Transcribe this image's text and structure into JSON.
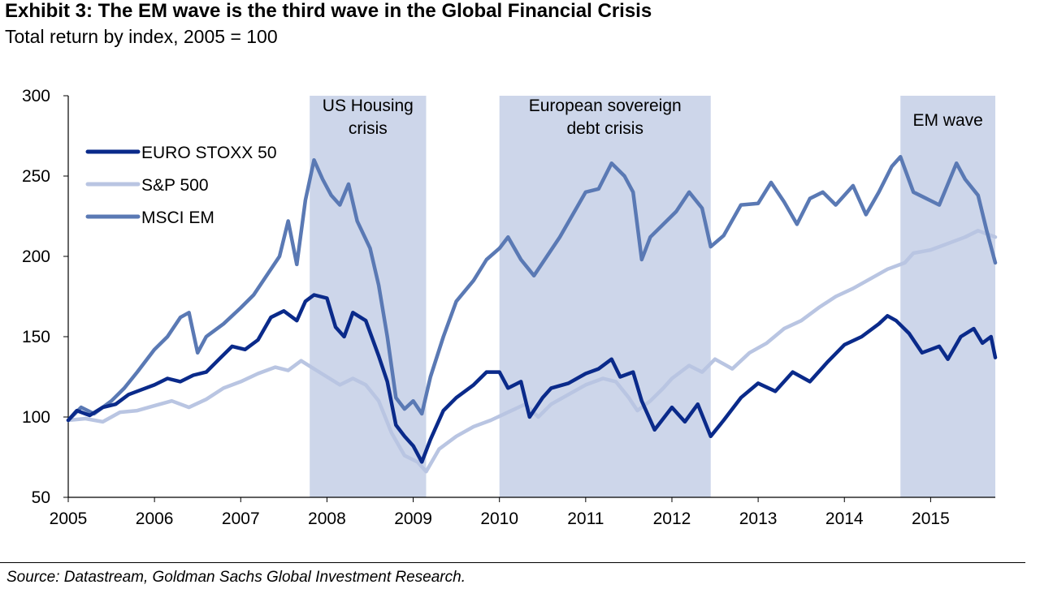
{
  "title": "Exhibit 3: The EM wave is the third wave in the Global Financial Crisis",
  "subtitle": "Total return by index, 2005 = 100",
  "source": "Source: Datastream, Goldman Sachs Global Investment Research.",
  "chart_data": {
    "type": "line",
    "x_unit": "year",
    "xlim": [
      2005,
      2015.75
    ],
    "ylim": [
      50,
      300
    ],
    "y_ticks": [
      50,
      100,
      150,
      200,
      250,
      300
    ],
    "x_ticks": [
      2005,
      2006,
      2007,
      2008,
      2009,
      2010,
      2011,
      2012,
      2013,
      2014,
      2015
    ],
    "x_tick_labels": [
      "2005",
      "2006",
      "2007",
      "2008",
      "2009",
      "2010",
      "2011",
      "2012",
      "2013",
      "2014",
      "2015"
    ],
    "grid": false,
    "legend_position": "top-left",
    "shaded_periods": [
      {
        "label_lines": [
          "US Housing",
          "crisis"
        ],
        "start": 2007.8,
        "end": 2009.15
      },
      {
        "label_lines": [
          "European sovereign",
          "debt crisis"
        ],
        "start": 2010.0,
        "end": 2012.45
      },
      {
        "label_lines": [
          "EM wave"
        ],
        "start": 2014.65,
        "end": 2015.75
      }
    ],
    "series": [
      {
        "name": "EURO STOXX 50",
        "color": "#0a2a8a",
        "x": [
          2005.0,
          2005.1,
          2005.25,
          2005.4,
          2005.55,
          2005.7,
          2005.85,
          2006.0,
          2006.15,
          2006.3,
          2006.45,
          2006.6,
          2006.75,
          2006.9,
          2007.05,
          2007.2,
          2007.35,
          2007.5,
          2007.65,
          2007.75,
          2007.85,
          2008.0,
          2008.1,
          2008.2,
          2008.3,
          2008.45,
          2008.6,
          2008.7,
          2008.8,
          2008.9,
          2009.0,
          2009.1,
          2009.2,
          2009.35,
          2009.5,
          2009.7,
          2009.85,
          2010.0,
          2010.1,
          2010.25,
          2010.35,
          2010.5,
          2010.6,
          2010.8,
          2011.0,
          2011.15,
          2011.3,
          2011.4,
          2011.55,
          2011.65,
          2011.8,
          2012.0,
          2012.15,
          2012.3,
          2012.45,
          2012.6,
          2012.8,
          2013.0,
          2013.2,
          2013.4,
          2013.6,
          2013.8,
          2014.0,
          2014.2,
          2014.4,
          2014.5,
          2014.6,
          2014.75,
          2014.9,
          2015.1,
          2015.2,
          2015.35,
          2015.5,
          2015.6,
          2015.7,
          2015.75
        ],
        "y": [
          98,
          104,
          101,
          106,
          108,
          114,
          117,
          120,
          124,
          122,
          126,
          128,
          136,
          144,
          142,
          148,
          162,
          166,
          160,
          172,
          176,
          174,
          156,
          150,
          165,
          160,
          138,
          122,
          95,
          88,
          82,
          72,
          86,
          104,
          112,
          120,
          128,
          128,
          118,
          122,
          100,
          112,
          118,
          121,
          127,
          130,
          136,
          125,
          128,
          110,
          92,
          106,
          97,
          108,
          88,
          98,
          112,
          121,
          116,
          128,
          122,
          134,
          145,
          150,
          158,
          163,
          160,
          152,
          140,
          144,
          136,
          150,
          155,
          146,
          150,
          137
        ]
      },
      {
        "name": "S&P 500",
        "color": "#b9c5e2",
        "x": [
          2005.0,
          2005.2,
          2005.4,
          2005.6,
          2005.8,
          2006.0,
          2006.2,
          2006.4,
          2006.6,
          2006.8,
          2007.0,
          2007.2,
          2007.4,
          2007.55,
          2007.7,
          2007.85,
          2008.0,
          2008.15,
          2008.3,
          2008.45,
          2008.6,
          2008.75,
          2008.9,
          2009.05,
          2009.15,
          2009.3,
          2009.5,
          2009.7,
          2009.9,
          2010.1,
          2010.3,
          2010.45,
          2010.6,
          2010.8,
          2011.0,
          2011.2,
          2011.35,
          2011.5,
          2011.6,
          2011.75,
          2011.9,
          2012.0,
          2012.2,
          2012.35,
          2012.5,
          2012.7,
          2012.9,
          2013.1,
          2013.3,
          2013.5,
          2013.7,
          2013.9,
          2014.1,
          2014.3,
          2014.5,
          2014.7,
          2014.8,
          2015.0,
          2015.2,
          2015.4,
          2015.55,
          2015.65,
          2015.75
        ],
        "y": [
          98,
          99,
          97,
          103,
          104,
          107,
          110,
          106,
          111,
          118,
          122,
          127,
          131,
          129,
          135,
          130,
          125,
          120,
          124,
          120,
          110,
          90,
          76,
          72,
          66,
          80,
          88,
          94,
          98,
          103,
          108,
          100,
          108,
          114,
          120,
          124,
          122,
          112,
          104,
          110,
          118,
          124,
          132,
          128,
          136,
          130,
          140,
          146,
          155,
          160,
          168,
          175,
          180,
          186,
          192,
          196,
          202,
          204,
          208,
          212,
          216,
          214,
          212
        ]
      },
      {
        "name": "MSCI EM",
        "color": "#5a79b4",
        "x": [
          2005.0,
          2005.15,
          2005.3,
          2005.5,
          2005.65,
          2005.8,
          2006.0,
          2006.15,
          2006.3,
          2006.4,
          2006.5,
          2006.6,
          2006.8,
          2007.0,
          2007.15,
          2007.3,
          2007.45,
          2007.55,
          2007.65,
          2007.75,
          2007.85,
          2007.95,
          2008.05,
          2008.15,
          2008.25,
          2008.35,
          2008.5,
          2008.6,
          2008.7,
          2008.8,
          2008.9,
          2009.0,
          2009.1,
          2009.2,
          2009.35,
          2009.5,
          2009.7,
          2009.85,
          2010.0,
          2010.1,
          2010.25,
          2010.4,
          2010.55,
          2010.7,
          2010.85,
          2011.0,
          2011.15,
          2011.3,
          2011.45,
          2011.55,
          2011.65,
          2011.75,
          2011.9,
          2012.05,
          2012.2,
          2012.35,
          2012.45,
          2012.6,
          2012.8,
          2013.0,
          2013.15,
          2013.3,
          2013.45,
          2013.6,
          2013.75,
          2013.9,
          2014.1,
          2014.25,
          2014.4,
          2014.55,
          2014.65,
          2014.8,
          2014.95,
          2015.1,
          2015.3,
          2015.4,
          2015.55,
          2015.65,
          2015.75
        ],
        "y": [
          98,
          106,
          102,
          110,
          118,
          128,
          142,
          150,
          162,
          165,
          140,
          150,
          158,
          168,
          176,
          188,
          200,
          222,
          195,
          235,
          260,
          248,
          238,
          232,
          245,
          222,
          205,
          182,
          150,
          112,
          105,
          110,
          102,
          125,
          150,
          172,
          185,
          198,
          205,
          212,
          198,
          188,
          200,
          212,
          226,
          240,
          242,
          258,
          250,
          240,
          198,
          212,
          220,
          228,
          240,
          230,
          206,
          213,
          232,
          233,
          246,
          234,
          220,
          236,
          240,
          232,
          244,
          226,
          240,
          256,
          262,
          240,
          236,
          232,
          258,
          248,
          238,
          216,
          196
        ]
      }
    ]
  }
}
